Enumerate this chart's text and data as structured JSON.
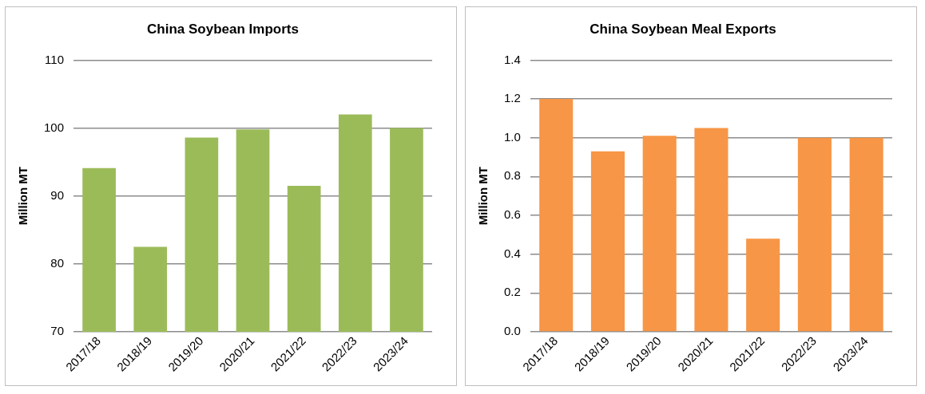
{
  "chart_data": [
    {
      "type": "bar",
      "title": "China Soybean Imports",
      "ylabel": "Million MT",
      "categories": [
        "2017/18",
        "2018/19",
        "2019/20",
        "2020/21",
        "2021/22",
        "2022/23",
        "2023/24"
      ],
      "values": [
        94.1,
        82.5,
        98.6,
        99.8,
        91.5,
        102.0,
        100.0
      ],
      "color": "#9bbb59",
      "ylim": [
        70,
        110
      ],
      "yticks": [
        70,
        80,
        90,
        100,
        110
      ],
      "grid": "y"
    },
    {
      "type": "bar",
      "title": "China Soybean Meal Exports",
      "ylabel": "Million MT",
      "categories": [
        "2017/18",
        "2018/19",
        "2019/20",
        "2020/21",
        "2021/22",
        "2022/23",
        "2023/24"
      ],
      "values": [
        1.2,
        0.93,
        1.01,
        1.05,
        0.48,
        1.0,
        1.0
      ],
      "color": "#f79646",
      "ylim": [
        0,
        1.4
      ],
      "yticks": [
        {
          "value": 0,
          "label": "0.0"
        },
        {
          "value": 0.2,
          "label": "0.2"
        },
        {
          "value": 0.4,
          "label": "0.4"
        },
        {
          "value": 0.6,
          "label": "0.6"
        },
        {
          "value": 0.8,
          "label": "0.8"
        },
        {
          "value": 1.0,
          "label": "1.0"
        },
        {
          "value": 1.2,
          "label": "1.2"
        },
        {
          "value": 1.4,
          "label": "1.4"
        }
      ],
      "grid": "y"
    }
  ]
}
